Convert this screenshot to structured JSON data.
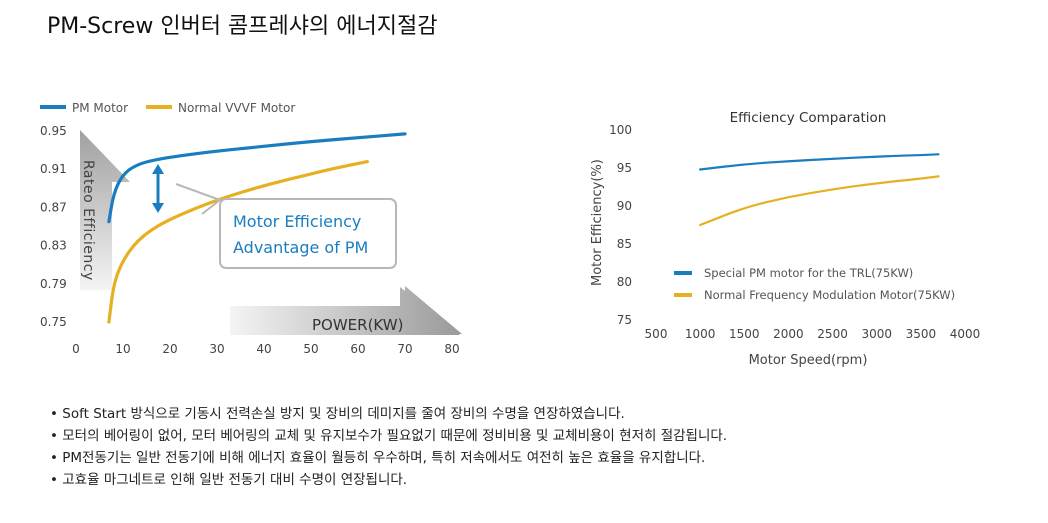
{
  "page": {
    "title": "PM-Screw 인버터 콤프레샤의 에너지절감",
    "bullets": [
      "Soft Start 방식으로 기동시 전력손실 방지 및 장비의 데미지를 줄여 장비의 수명을 연장하였습니다.",
      "모터의 베어링이 없어, 모터 베어링의 교체 및 유지보수가 필요없기 때문에 정비비용 및 교체비용이 현저히 절감됩니다.",
      "PM전동기는 일반 전동기에 비해 에너지 효율이 월등히 우수하며, 특히 저속에서도 여전히 높은 효율을 유지합니다.",
      "고효율 마그네트로 인해 일반 전동기 대비 수명이 연장됩니다."
    ]
  },
  "chart_data": [
    {
      "type": "line",
      "title": "",
      "xlabel": "POWER(KW)",
      "ylabel": "Rateo Efficiency",
      "x_ticks": [
        "0",
        "10",
        "20",
        "30",
        "40",
        "50",
        "60",
        "70",
        "80"
      ],
      "y_ticks": [
        "0.75",
        "0.79",
        "0.83",
        "0.87",
        "0.91",
        "0.95"
      ],
      "xlim": [
        0,
        80
      ],
      "ylim": [
        0.75,
        0.95
      ],
      "legend_position": "top-left",
      "annotation": {
        "line1": "Motor Efficiency",
        "line2": "Advantage of PM"
      },
      "series": [
        {
          "name": "PM Motor",
          "color": "#1a7dc0",
          "x": [
            7,
            8,
            10,
            13,
            17,
            22,
            30,
            40,
            50,
            60,
            70
          ],
          "y": [
            0.855,
            0.885,
            0.905,
            0.915,
            0.92,
            0.924,
            0.929,
            0.934,
            0.939,
            0.943,
            0.947
          ]
        },
        {
          "name": "Normal VVVF Motor",
          "color": "#e6b020",
          "x": [
            7,
            8,
            10,
            13,
            17,
            22,
            30,
            40,
            50,
            55,
            62
          ],
          "y": [
            0.75,
            0.79,
            0.815,
            0.835,
            0.85,
            0.862,
            0.878,
            0.893,
            0.905,
            0.911,
            0.918
          ]
        }
      ]
    },
    {
      "type": "line",
      "title": "Efficiency Comparation",
      "xlabel": "Motor Speed(rpm)",
      "ylabel": "Motor Efficiency(%)",
      "x_ticks": [
        "500",
        "1000",
        "1500",
        "2000",
        "2500",
        "3000",
        "3500",
        "4000"
      ],
      "y_ticks": [
        "75",
        "80",
        "85",
        "90",
        "95",
        "100"
      ],
      "xlim": [
        500,
        4000
      ],
      "ylim": [
        75,
        100
      ],
      "legend_position": "bottom-left",
      "series": [
        {
          "name": "Special PM motor for the TRL(75KW)",
          "color": "#1a7dc0",
          "x": [
            1000,
            1500,
            2000,
            2500,
            3000,
            3500,
            3700
          ],
          "y": [
            94.8,
            95.5,
            95.9,
            96.2,
            96.5,
            96.7,
            96.8
          ]
        },
        {
          "name": "Normal Frequency Modulation Motor(75KW)",
          "color": "#e6b020",
          "x": [
            1000,
            1500,
            2000,
            2500,
            3000,
            3500,
            3700
          ],
          "y": [
            87.5,
            89.8,
            91.2,
            92.2,
            93.0,
            93.6,
            93.9
          ]
        }
      ]
    }
  ]
}
